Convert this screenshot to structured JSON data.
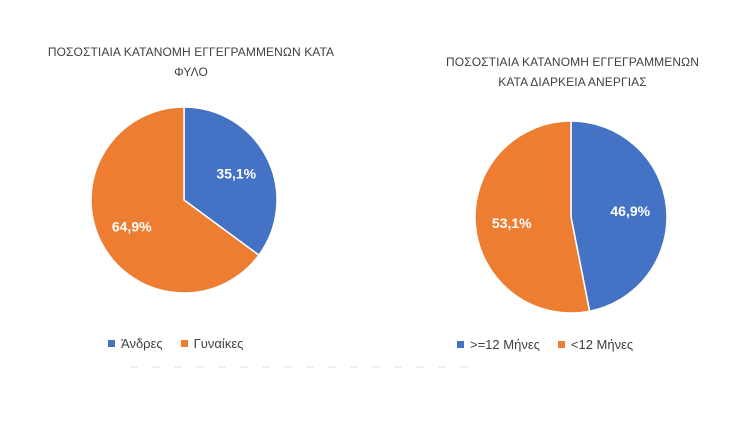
{
  "chart_data": [
    {
      "type": "pie",
      "title_line1": "ΠΟΣΟΣΤΙΑΙΑ ΚΑΤΑΝΟΜΗ ΕΓΓΕΓΡΑΜΜΕΝΩΝ ΚΑΤΑ",
      "title_line2": "ΦΥΛΟ",
      "slices": [
        {
          "label": "Άνδρες",
          "value": 35.1,
          "display": "35,1%",
          "color": "#4472c4"
        },
        {
          "label": "Γυναίκες",
          "value": 64.9,
          "display": "64,9%",
          "color": "#ed7d31"
        }
      ],
      "legend_position": "bottom"
    },
    {
      "type": "pie",
      "title_line1": "ΠΟΣΟΣΤΙΑΙΑ ΚΑΤΑΝΟΜΗ ΕΓΓΕΓΡΑΜΜΕΝΩΝ",
      "title_line2": "ΚΑΤΑ ΔΙΑΡΚΕΙΑ ΑΝΕΡΓΙΑΣ",
      "slices": [
        {
          "label": ">=12 Μήνες",
          "value": 46.9,
          "display": "46,9%",
          "color": "#4472c4"
        },
        {
          "label": "<12 Μήνες",
          "value": 53.1,
          "display": "53,1%",
          "color": "#ed7d31"
        }
      ],
      "legend_position": "bottom"
    }
  ]
}
